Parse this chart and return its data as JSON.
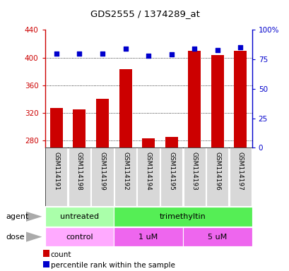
{
  "title": "GDS2555 / 1374289_at",
  "samples": [
    "GSM114191",
    "GSM114198",
    "GSM114199",
    "GSM114192",
    "GSM114194",
    "GSM114195",
    "GSM114193",
    "GSM114196",
    "GSM114197"
  ],
  "counts": [
    327,
    325,
    340,
    383,
    284,
    286,
    410,
    404,
    410
  ],
  "percentile_ranks": [
    80,
    80,
    80,
    84,
    78,
    79,
    84,
    83,
    85
  ],
  "ylim_left": [
    270,
    440
  ],
  "ylim_right": [
    0,
    100
  ],
  "yticks_left": [
    280,
    320,
    360,
    400,
    440
  ],
  "yticks_right": [
    0,
    25,
    50,
    75,
    100
  ],
  "bar_color": "#cc0000",
  "dot_color": "#0000cc",
  "bar_bottom": 270,
  "agent_untreated_color": "#aaffaa",
  "agent_trimethyltin_color": "#55ee55",
  "dose_control_color": "#ffaaff",
  "dose_1um_color": "#ee66ee",
  "dose_5um_color": "#ee66ee",
  "grid_color": "black",
  "background_color": "#ffffff",
  "left_tick_color": "#cc0000",
  "right_tick_color": "#0000cc",
  "xtick_bg": "#d8d8d8",
  "legend_count_color": "#cc0000",
  "legend_dot_color": "#0000cc"
}
